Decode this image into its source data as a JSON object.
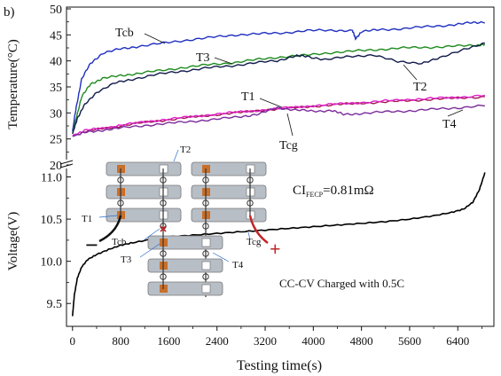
{
  "panel_label": "b)",
  "chart_data": [
    {
      "type": "line",
      "ylabel": "Temperature(°C)",
      "ylim": [
        20,
        50
      ],
      "yticks": [
        20,
        25,
        30,
        35,
        40,
        45,
        50
      ],
      "xlim": [
        -100,
        7000
      ],
      "series": [
        {
          "name": "Tcb",
          "color": "#1f2fbf",
          "x": [
            0,
            60,
            150,
            300,
            500,
            800,
            1100,
            1500,
            1900,
            2300,
            2700,
            3100,
            3500,
            3900,
            4300,
            4650,
            4700,
            4800,
            5100,
            5500,
            5900,
            6300,
            6600,
            6850
          ],
          "y": [
            26.5,
            31,
            36.5,
            39.5,
            41.5,
            42.3,
            42.8,
            43.4,
            44,
            44.5,
            45,
            45.2,
            45.4,
            45.8,
            45.9,
            45.8,
            44.3,
            45.6,
            46,
            46.2,
            46.6,
            46.9,
            47.3,
            47.5
          ]
        },
        {
          "name": "T3",
          "color": "#1e8a1e",
          "x": [
            0,
            60,
            150,
            300,
            500,
            800,
            1100,
            1500,
            1900,
            2300,
            2700,
            3100,
            3500,
            3900,
            4300,
            4700,
            5100,
            5500,
            5900,
            6300,
            6700,
            6850
          ],
          "y": [
            26,
            29,
            33,
            35.6,
            36.6,
            37.2,
            37.6,
            38.2,
            38.8,
            39.3,
            39.7,
            40.3,
            40.8,
            41.1,
            41.6,
            41.9,
            42.2,
            42.5,
            42.6,
            42.8,
            43,
            43.2
          ]
        },
        {
          "name": "T2",
          "color": "#101a4a",
          "x": [
            0,
            80,
            200,
            400,
            700,
            1000,
            1400,
            1800,
            2200,
            2600,
            3000,
            3400,
            3700,
            3900,
            4200,
            4600,
            5000,
            5400,
            5800,
            6100,
            6500,
            6850
          ],
          "y": [
            26,
            29,
            31.5,
            34,
            35.7,
            36.5,
            37.4,
            38,
            38.6,
            39,
            39.6,
            40,
            41,
            40.8,
            40.3,
            40.8,
            41.2,
            39.8,
            39.6,
            40.5,
            42.3,
            43.3
          ]
        },
        {
          "name": "T1",
          "color": "#a01650",
          "x": [
            0,
            200,
            500,
            800,
            1200,
            1600,
            2000,
            2400,
            2800,
            3200,
            3600,
            4000,
            4400,
            4800,
            5200,
            5600,
            6000,
            6400,
            6850
          ],
          "y": [
            25.5,
            26.4,
            27,
            27.5,
            28.2,
            28.7,
            29.2,
            29.7,
            30.1,
            30.6,
            30.9,
            31.3,
            31.6,
            31.9,
            32.1,
            32.4,
            32.6,
            32.9,
            33.1
          ]
        },
        {
          "name": "Tcg",
          "color": "#e020c8",
          "x": [
            0,
            200,
            500,
            800,
            1200,
            1600,
            2000,
            2400,
            2800,
            3200,
            3600,
            4000,
            4400,
            4800,
            5200,
            5600,
            6000,
            6400,
            6850
          ],
          "y": [
            25.7,
            26.6,
            27.1,
            27.6,
            28.3,
            28.8,
            29.3,
            29.8,
            30.2,
            30.6,
            31,
            31.4,
            31.7,
            32,
            32.3,
            32.6,
            32.8,
            33,
            33.4
          ]
        },
        {
          "name": "T4",
          "color": "#7a2a9a",
          "x": [
            0,
            200,
            500,
            800,
            1200,
            1600,
            2000,
            2400,
            2800,
            3100,
            3400,
            3700,
            4000,
            4300,
            4500,
            4800,
            5200,
            5600,
            6000,
            6400,
            6850
          ],
          "y": [
            25.5,
            26.2,
            26.7,
            27.1,
            27.6,
            28,
            28.4,
            28.8,
            29.3,
            29.8,
            31,
            30.6,
            30.3,
            30.5,
            29.7,
            29.9,
            30.2,
            30.4,
            30.7,
            31,
            31.4
          ]
        }
      ],
      "series_labels": [
        "Tcb",
        "T3",
        "T2",
        "T1",
        "Tcg",
        "T4"
      ]
    },
    {
      "type": "line",
      "ylabel": "Voltage(V)",
      "xlabel": "Testing time(s)",
      "ylim": [
        9.25,
        11.1
      ],
      "yticks": [
        "9.5",
        "10.0",
        "10.5",
        "11.0"
      ],
      "xlim": [
        -100,
        7000
      ],
      "xticks": [
        "0",
        "800",
        "1600",
        "2400",
        "3200",
        "4000",
        "4800",
        "5600",
        "6400"
      ],
      "series": [
        {
          "name": "Voltage",
          "color": "#000000",
          "x": [
            0,
            30,
            80,
            150,
            250,
            400,
            600,
            800,
            1000,
            1300,
            1600,
            2000,
            2400,
            2800,
            3200,
            3600,
            4000,
            4400,
            4800,
            5200,
            5600,
            6000,
            6300,
            6500,
            6650,
            6760,
            6850
          ],
          "y": [
            9.35,
            9.6,
            9.8,
            9.93,
            10.02,
            10.08,
            10.14,
            10.19,
            10.22,
            10.26,
            10.29,
            10.31,
            10.33,
            10.35,
            10.37,
            10.39,
            10.41,
            10.43,
            10.45,
            10.47,
            10.5,
            10.54,
            10.58,
            10.62,
            10.7,
            10.85,
            11.05
          ]
        }
      ],
      "annotations": {
        "ci_main": "CI",
        "ci_sub": "FECP",
        "ci_value": "=0.81mΩ",
        "charge_note": "CC-CV Charged with 0.5C"
      }
    }
  ],
  "inset": {
    "labels": [
      "T2",
      "T1",
      "Tcb",
      "T3",
      "T4",
      "Tcg"
    ],
    "minus": "−",
    "plus": "+"
  }
}
